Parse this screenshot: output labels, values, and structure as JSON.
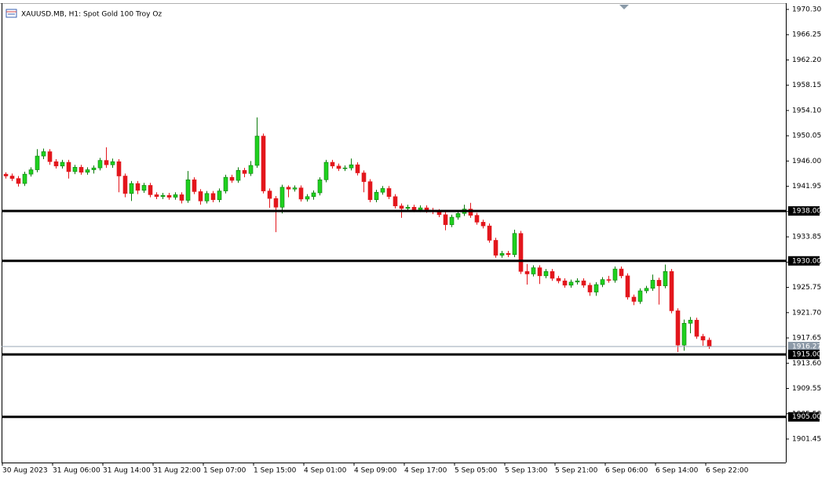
{
  "chart_data": {
    "type": "candlestick",
    "title": "XAUUSD.MB, H1:  Spot Gold 100 Troy Oz",
    "up_color": "#1fd11f",
    "down_color": "#e3161c",
    "ylim": [
      1897.68,
      1971.18
    ],
    "yticks": [
      {
        "value": 1970.3,
        "label": "1970.30"
      },
      1966.25,
      {
        "value": 1962.2,
        "label": "1962.20"
      },
      1958.15,
      {
        "value": 1954.1,
        "label": "1954.10"
      },
      1950.05,
      {
        "value": 1946,
        "label": "1946.00"
      },
      1941.95,
      {
        "value": 1937.9,
        "label": "1937.90"
      },
      1933.85,
      {
        "value": 1929.8,
        "label": "1929.80"
      },
      1925.75,
      {
        "value": 1921.7,
        "label": "1921.70"
      },
      1917.65,
      {
        "value": 1913.6,
        "label": "1913.60"
      },
      1909.55,
      {
        "value": 1905.5,
        "label": "1905.50"
      },
      1901.45
    ],
    "levels": [
      {
        "value": 1938,
        "label": "1938.00"
      },
      {
        "value": 1930,
        "label": "1930.00"
      },
      {
        "value": 1915,
        "label": "1915.00"
      },
      {
        "value": 1905,
        "label": "1905.00"
      }
    ],
    "categories": [
      "30 Aug 2023",
      null,
      null,
      null,
      null,
      null,
      null,
      null,
      "31 Aug 06:00",
      null,
      null,
      null,
      null,
      null,
      null,
      null,
      "31 Aug 14:00",
      null,
      null,
      null,
      null,
      null,
      null,
      null,
      "31 Aug 22:00",
      null,
      null,
      null,
      null,
      null,
      null,
      null,
      "1 Sep 07:00",
      null,
      null,
      null,
      null,
      null,
      null,
      null,
      "1 Sep 15:00",
      null,
      null,
      null,
      null,
      null,
      null,
      null,
      "4 Sep 01:00",
      null,
      null,
      null,
      null,
      null,
      null,
      null,
      "4 Sep 09:00",
      null,
      null,
      null,
      null,
      null,
      null,
      null,
      "4 Sep 17:00",
      null,
      null,
      null,
      null,
      null,
      null,
      null,
      "5 Sep 05:00",
      null,
      null,
      null,
      null,
      null,
      null,
      null,
      "5 Sep 13:00",
      null,
      null,
      null,
      null,
      null,
      null,
      null,
      "5 Sep 21:00",
      null,
      null,
      null,
      null,
      null,
      null,
      null,
      "6 Sep 06:00",
      null,
      null,
      null,
      null,
      null,
      null,
      null,
      "6 Sep 14:00",
      null,
      null,
      null,
      null,
      null,
      null,
      null,
      "6 Sep 22:00"
    ],
    "ohlc": [
      [
        1943.9,
        1944.2,
        1943.2,
        1943.6
      ],
      [
        1943.6,
        1944.0,
        1942.8,
        1943.2
      ],
      [
        1943.2,
        1943.6,
        1941.9,
        1942.4
      ],
      [
        1942.4,
        1944.3,
        1942.0,
        1943.9
      ],
      [
        1943.9,
        1945.0,
        1943.5,
        1944.6
      ],
      [
        1944.6,
        1947.9,
        1944.2,
        1946.8
      ],
      [
        1946.8,
        1948.0,
        1946.3,
        1947.5
      ],
      [
        1947.5,
        1947.9,
        1945.4,
        1945.9
      ],
      [
        1945.9,
        1946.3,
        1944.8,
        1945.2
      ],
      [
        1945.2,
        1946.2,
        1944.8,
        1945.8
      ],
      [
        1945.8,
        1946.2,
        1943.2,
        1944.3
      ],
      [
        1944.3,
        1945.4,
        1943.9,
        1945.0
      ],
      [
        1945.0,
        1945.4,
        1943.8,
        1944.2
      ],
      [
        1944.2,
        1945.0,
        1943.8,
        1944.6
      ],
      [
        1944.6,
        1945.3,
        1944.0,
        1944.9
      ],
      [
        1944.9,
        1946.5,
        1944.5,
        1946.1
      ],
      [
        1946.1,
        1948.2,
        1944.9,
        1945.4
      ],
      [
        1945.4,
        1946.4,
        1944.9,
        1945.9
      ],
      [
        1945.9,
        1946.3,
        1941.0,
        1943.6
      ],
      [
        1943.6,
        1944.0,
        1940.2,
        1940.8
      ],
      [
        1940.8,
        1942.8,
        1939.6,
        1942.4
      ],
      [
        1942.4,
        1942.8,
        1940.7,
        1941.3
      ],
      [
        1941.3,
        1942.5,
        1940.9,
        1942.1
      ],
      [
        1942.1,
        1942.5,
        1940.2,
        1940.6
      ],
      [
        1940.6,
        1941.0,
        1939.9,
        1940.3
      ],
      [
        1940.3,
        1940.9,
        1939.9,
        1940.5
      ],
      [
        1940.5,
        1940.9,
        1939.8,
        1940.2
      ],
      [
        1940.2,
        1941.0,
        1939.8,
        1940.6
      ],
      [
        1940.6,
        1941.0,
        1939.2,
        1939.7
      ],
      [
        1939.7,
        1944.4,
        1939.3,
        1943.0
      ],
      [
        1943.0,
        1943.4,
        1940.7,
        1941.1
      ],
      [
        1941.1,
        1941.5,
        1939.0,
        1939.6
      ],
      [
        1939.6,
        1941.2,
        1939.2,
        1940.8
      ],
      [
        1940.8,
        1941.2,
        1939.4,
        1939.8
      ],
      [
        1939.8,
        1941.6,
        1939.4,
        1941.2
      ],
      [
        1941.2,
        1943.8,
        1940.8,
        1943.4
      ],
      [
        1943.4,
        1943.8,
        1942.5,
        1942.9
      ],
      [
        1942.9,
        1945.0,
        1942.5,
        1944.5
      ],
      [
        1944.5,
        1944.9,
        1943.4,
        1944.0
      ],
      [
        1944.0,
        1946.0,
        1943.6,
        1945.3
      ],
      [
        1945.3,
        1953.0,
        1944.9,
        1950.0
      ],
      [
        1950.0,
        1950.4,
        1940.8,
        1941.2
      ],
      [
        1941.2,
        1941.6,
        1938.5,
        1940.0
      ],
      [
        1940.0,
        1940.4,
        1934.6,
        1938.6
      ],
      [
        1938.6,
        1942.2,
        1937.6,
        1941.8
      ],
      [
        1941.8,
        1942.1,
        1940.2,
        1941.5
      ],
      [
        1941.5,
        1942.1,
        1941.1,
        1941.7
      ],
      [
        1941.7,
        1942.1,
        1939.5,
        1939.9
      ],
      [
        1939.9,
        1940.7,
        1939.5,
        1940.3
      ],
      [
        1940.3,
        1941.3,
        1939.8,
        1940.9
      ],
      [
        1940.9,
        1943.4,
        1940.5,
        1943.0
      ],
      [
        1943.0,
        1946.2,
        1942.6,
        1945.8
      ],
      [
        1945.8,
        1946.2,
        1944.8,
        1945.2
      ],
      [
        1945.2,
        1945.6,
        1944.4,
        1944.8
      ],
      [
        1944.8,
        1945.3,
        1944.4,
        1944.9
      ],
      [
        1944.9,
        1946.4,
        1944.5,
        1945.4
      ],
      [
        1945.4,
        1945.8,
        1943.7,
        1944.1
      ],
      [
        1944.1,
        1944.5,
        1941.0,
        1942.7
      ],
      [
        1942.7,
        1943.1,
        1939.4,
        1939.8
      ],
      [
        1939.8,
        1941.4,
        1939.4,
        1941.0
      ],
      [
        1941.0,
        1942.0,
        1940.6,
        1941.6
      ],
      [
        1941.6,
        1942.0,
        1939.9,
        1940.3
      ],
      [
        1940.3,
        1940.7,
        1938.4,
        1938.8
      ],
      [
        1938.8,
        1939.2,
        1936.9,
        1938.4
      ],
      [
        1938.4,
        1939.0,
        1938.0,
        1938.6
      ],
      [
        1938.6,
        1939.0,
        1937.8,
        1938.2
      ],
      [
        1938.2,
        1938.9,
        1937.8,
        1938.5
      ],
      [
        1938.5,
        1938.9,
        1937.7,
        1938.1
      ],
      [
        1938.1,
        1938.5,
        1937.5,
        1937.9
      ],
      [
        1937.9,
        1938.3,
        1937.0,
        1937.4
      ],
      [
        1937.4,
        1937.8,
        1934.9,
        1935.8
      ],
      [
        1935.8,
        1937.4,
        1935.4,
        1937.0
      ],
      [
        1937.0,
        1938.0,
        1936.6,
        1937.6
      ],
      [
        1937.6,
        1939.0,
        1937.2,
        1938.3
      ],
      [
        1938.3,
        1939.3,
        1936.9,
        1937.3
      ],
      [
        1937.3,
        1937.7,
        1935.8,
        1936.2
      ],
      [
        1936.2,
        1936.6,
        1935.2,
        1935.6
      ],
      [
        1935.6,
        1936.0,
        1932.9,
        1933.3
      ],
      [
        1933.3,
        1933.7,
        1930.5,
        1930.9
      ],
      [
        1930.9,
        1931.6,
        1930.5,
        1931.2
      ],
      [
        1931.2,
        1931.6,
        1930.6,
        1931.0
      ],
      [
        1931.0,
        1935.0,
        1930.6,
        1934.4
      ],
      [
        1934.4,
        1934.8,
        1927.9,
        1928.3
      ],
      [
        1928.3,
        1929.5,
        1926.2,
        1927.9
      ],
      [
        1927.9,
        1929.3,
        1927.5,
        1928.9
      ],
      [
        1928.9,
        1929.3,
        1926.3,
        1927.6
      ],
      [
        1927.6,
        1928.7,
        1927.2,
        1928.3
      ],
      [
        1928.3,
        1928.7,
        1926.8,
        1927.2
      ],
      [
        1927.2,
        1927.6,
        1926.4,
        1926.8
      ],
      [
        1926.8,
        1927.2,
        1925.7,
        1926.1
      ],
      [
        1926.1,
        1927.0,
        1925.7,
        1926.6
      ],
      [
        1926.6,
        1927.2,
        1926.2,
        1926.8
      ],
      [
        1926.8,
        1927.2,
        1925.7,
        1926.1
      ],
      [
        1926.1,
        1926.5,
        1924.4,
        1925.0
      ],
      [
        1925.0,
        1926.6,
        1924.4,
        1926.2
      ],
      [
        1926.2,
        1927.4,
        1925.8,
        1927.0
      ],
      [
        1927.0,
        1927.6,
        1926.5,
        1926.9
      ],
      [
        1926.9,
        1929.1,
        1926.5,
        1928.7
      ],
      [
        1928.7,
        1929.1,
        1927.2,
        1927.6
      ],
      [
        1927.6,
        1928.0,
        1923.8,
        1924.2
      ],
      [
        1924.2,
        1924.6,
        1922.9,
        1923.5
      ],
      [
        1923.5,
        1925.6,
        1923.1,
        1925.2
      ],
      [
        1925.2,
        1926.0,
        1924.8,
        1925.6
      ],
      [
        1925.6,
        1927.8,
        1925.2,
        1926.9
      ],
      [
        1926.9,
        1927.3,
        1923.0,
        1926.0
      ],
      [
        1926.0,
        1929.4,
        1925.6,
        1928.3
      ],
      [
        1928.3,
        1928.7,
        1921.6,
        1922.0
      ],
      [
        1922.0,
        1922.4,
        1915.4,
        1916.5
      ],
      [
        1916.5,
        1920.6,
        1915.6,
        1920.0
      ],
      [
        1920.0,
        1921.0,
        1918.4,
        1920.5
      ],
      [
        1920.5,
        1920.9,
        1917.5,
        1917.9
      ],
      [
        1917.9,
        1918.3,
        1916.4,
        1917.3
      ],
      [
        1917.3,
        1917.7,
        1915.9,
        1916.27
      ]
    ]
  }
}
